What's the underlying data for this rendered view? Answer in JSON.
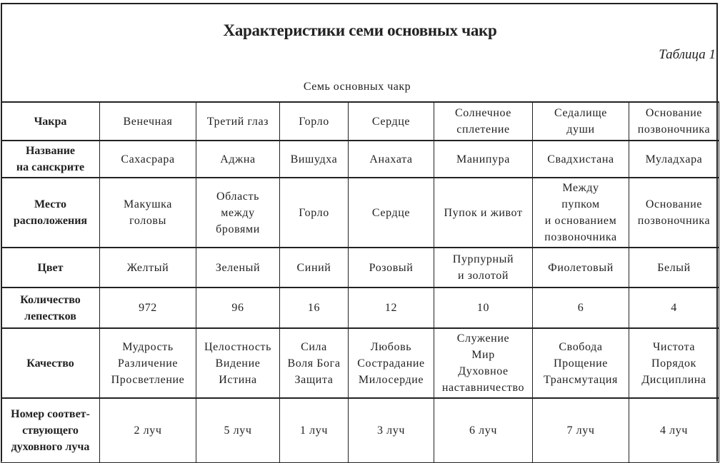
{
  "title": "Характеристики семи основных чакр",
  "table_number": "Таблица 1",
  "caption": "Семь основных чакр",
  "rows": [
    {
      "label": "Чакра",
      "cells": [
        "Венечная",
        "Третий глаз",
        "Горло",
        "Сердце",
        "Солнечное\nсплетение",
        "Седалище\nдуши",
        "Основание\nпозвоночника"
      ]
    },
    {
      "label": "Название\nна санскрите",
      "cells": [
        "Сахасрара",
        "Аджна",
        "Вишудха",
        "Анахата",
        "Манипура",
        "Свадхистана",
        "Муладхара"
      ]
    },
    {
      "label": "Место\nрасположения",
      "cells": [
        "Макушка\nголовы",
        "Область\nмежду\nбровями",
        "Горло",
        "Сердце",
        "Пупок и живот",
        "Между\nпупком\nи основанием\nпозвоночника",
        "Основание\nпозвоночника"
      ]
    },
    {
      "label": "Цвет",
      "cells": [
        "Желтый",
        "Зеленый",
        "Синий",
        "Розовый",
        "Пурпурный\nи золотой",
        "Фиолетовый",
        "Белый"
      ]
    },
    {
      "label": "Количество\nлепестков",
      "cells": [
        "972",
        "96",
        "16",
        "12",
        "10",
        "6",
        "4"
      ]
    },
    {
      "label": "Качество",
      "cells": [
        "Мудрость\nРазличение\nПросветление",
        "Целостность\nВидение\nИстина",
        "Сила\nВоля Бога\nЗащита",
        "Любовь\nСострадание\nМилосердие",
        "Служение\nМир\nДуховное\nнаставничество",
        "Свобода\nПрощение\nТрансмутация",
        "Чистота\nПорядок\nДисциплина"
      ]
    },
    {
      "label": "Номер соответ-\nствующего\nдуховного луча",
      "cells": [
        "2 луч",
        "5 луч",
        "1 луч",
        "3 луч",
        "6 луч",
        "7 луч",
        "4 луч"
      ]
    }
  ]
}
